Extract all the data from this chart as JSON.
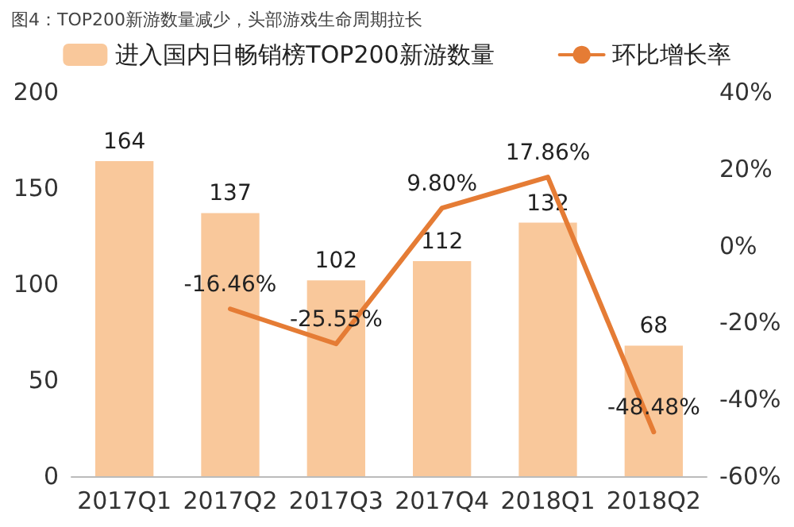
{
  "chart_data": {
    "type": "bar",
    "title": "图4：TOP200新游数量减少，头部游戏生命周期拉长",
    "categories": [
      "2017Q1",
      "2017Q2",
      "2017Q3",
      "2017Q4",
      "2018Q1",
      "2018Q2"
    ],
    "series": [
      {
        "name": "进入国内日畅销榜TOP200新游数量",
        "color": "#f9c89b",
        "values": [
          164,
          137,
          102,
          112,
          132,
          68
        ],
        "data_labels": true
      },
      {
        "name": "环比增长率",
        "type": "line",
        "axis": "y2",
        "color": "#e57c35",
        "values": [
          null,
          -16.46,
          -25.55,
          9.8,
          17.86,
          -48.48
        ],
        "value_labels": [
          null,
          "-16.46%",
          "-25.55%",
          "9.80%",
          "17.86%",
          "-48.48%"
        ]
      }
    ],
    "ylim": [
      0,
      200
    ],
    "yticks": [
      0,
      50,
      100,
      150,
      200
    ],
    "y2lim": [
      -60,
      40
    ],
    "y2ticks": [
      {
        "value": -60,
        "label": "-60%"
      },
      {
        "value": -40,
        "label": "-40%"
      },
      {
        "value": -20,
        "label": "-20%"
      },
      {
        "value": 0,
        "label": "0%"
      },
      {
        "value": 20,
        "label": "20%"
      },
      {
        "value": 40,
        "label": "40%"
      }
    ],
    "legend": "top",
    "grid": false,
    "marker": "none",
    "line_style": "solid"
  }
}
